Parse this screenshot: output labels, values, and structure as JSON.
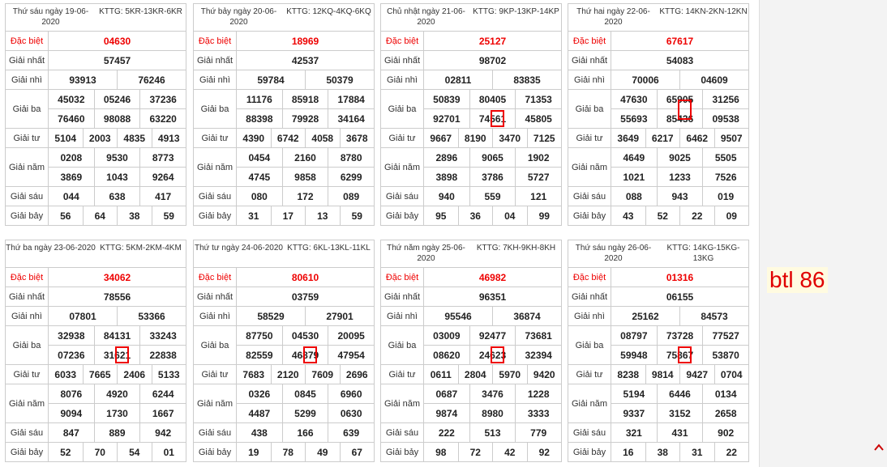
{
  "prize_labels": [
    "Đặc biệt",
    "Giải nhất",
    "Giải nhì",
    "Giải ba",
    "Giải tư",
    "Giải năm",
    "Giải sáu",
    "Giải bảy"
  ],
  "tables": [
    {
      "date": "Thứ sáu ngày 19-06-2020",
      "kttg": "KTTG: 5KR-13KR-6KR",
      "prizes": [
        [
          "04630"
        ],
        [
          "57457"
        ],
        [
          "93913",
          "76246"
        ],
        [
          "45032",
          "05246",
          "37236",
          "76460",
          "98088",
          "63220"
        ],
        [
          "5104",
          "2003",
          "4835",
          "4913"
        ],
        [
          "0208",
          "9530",
          "8773",
          "3869",
          "1043",
          "9264"
        ],
        [
          "044",
          "638",
          "417"
        ],
        [
          "56",
          "64",
          "38",
          "59"
        ]
      ]
    },
    {
      "date": "Thứ bảy ngày 20-06-2020",
      "kttg": "KTTG: 12KQ-4KQ-6KQ",
      "prizes": [
        [
          "18969"
        ],
        [
          "42537"
        ],
        [
          "59784",
          "50379"
        ],
        [
          "11176",
          "85918",
          "17884",
          "88398",
          "79928",
          "34164"
        ],
        [
          "4390",
          "6742",
          "4058",
          "3678"
        ],
        [
          "0454",
          "2160",
          "8780",
          "4745",
          "9858",
          "6299"
        ],
        [
          "080",
          "172",
          "089"
        ],
        [
          "31",
          "17",
          "13",
          "59"
        ]
      ]
    },
    {
      "date": "Chủ nhật ngày 21-06-2020",
      "kttg": "KTTG: 9KP-13KP-14KP",
      "prizes": [
        [
          "25127"
        ],
        [
          "98702"
        ],
        [
          "02811",
          "83835"
        ],
        [
          "50839",
          "80405",
          "71353",
          "92701",
          "74561",
          "45805"
        ],
        [
          "9667",
          "8190",
          "3470",
          "7125"
        ],
        [
          "2896",
          "9065",
          "1902",
          "3898",
          "3786",
          "5727"
        ],
        [
          "940",
          "559",
          "121"
        ],
        [
          "95",
          "36",
          "04",
          "99"
        ]
      ]
    },
    {
      "date": "Thứ hai ngày 22-06-2020",
      "kttg": "KTTG: 14KN-2KN-12KN",
      "prizes": [
        [
          "67617"
        ],
        [
          "54083"
        ],
        [
          "70006",
          "04609"
        ],
        [
          "47630",
          "65905",
          "31256",
          "55693",
          "85436",
          "09538"
        ],
        [
          "3649",
          "6217",
          "6462",
          "9507"
        ],
        [
          "4649",
          "9025",
          "5505",
          "1021",
          "1233",
          "7526"
        ],
        [
          "088",
          "943",
          "019"
        ],
        [
          "43",
          "52",
          "22",
          "09"
        ]
      ]
    },
    {
      "date": "Thứ ba ngày 23-06-2020",
      "kttg": "KTTG: 5KM-2KM-4KM",
      "prizes": [
        [
          "34062"
        ],
        [
          "78556"
        ],
        [
          "07801",
          "53366"
        ],
        [
          "32938",
          "84131",
          "33243",
          "07236",
          "31621",
          "22838"
        ],
        [
          "6033",
          "7665",
          "2406",
          "5133"
        ],
        [
          "8076",
          "4920",
          "6244",
          "9094",
          "1730",
          "1667"
        ],
        [
          "847",
          "889",
          "942"
        ],
        [
          "52",
          "70",
          "54",
          "01"
        ]
      ]
    },
    {
      "date": "Thứ tư ngày 24-06-2020",
      "kttg": "KTTG: 6KL-13KL-11KL",
      "prizes": [
        [
          "80610"
        ],
        [
          "03759"
        ],
        [
          "58529",
          "27901"
        ],
        [
          "87750",
          "04530",
          "20095",
          "82559",
          "46879",
          "47954"
        ],
        [
          "7683",
          "2120",
          "7609",
          "2696"
        ],
        [
          "0326",
          "0845",
          "6960",
          "4487",
          "5299",
          "0630"
        ],
        [
          "438",
          "166",
          "639"
        ],
        [
          "19",
          "78",
          "49",
          "67"
        ]
      ]
    },
    {
      "date": "Thứ năm ngày 25-06-2020",
      "kttg": "KTTG: 7KH-9KH-8KH",
      "prizes": [
        [
          "46982"
        ],
        [
          "96351"
        ],
        [
          "95546",
          "36874"
        ],
        [
          "03009",
          "92477",
          "73681",
          "08620",
          "24623",
          "32394"
        ],
        [
          "0611",
          "2804",
          "5970",
          "9420"
        ],
        [
          "0687",
          "3476",
          "1228",
          "9874",
          "8980",
          "3333"
        ],
        [
          "222",
          "513",
          "779"
        ],
        [
          "98",
          "72",
          "42",
          "92"
        ]
      ]
    },
    {
      "date": "Thứ sáu ngày 26-06-2020",
      "kttg": "KTTG: 14KG-15KG-13KG",
      "prizes": [
        [
          "01316"
        ],
        [
          "06155"
        ],
        [
          "25162",
          "84573"
        ],
        [
          "08797",
          "73728",
          "77527",
          "59948",
          "75867",
          "53870"
        ],
        [
          "8238",
          "9814",
          "9427",
          "0704"
        ],
        [
          "5194",
          "6446",
          "0134",
          "9337",
          "3152",
          "2658"
        ],
        [
          "321",
          "431",
          "902"
        ],
        [
          "16",
          "38",
          "31",
          "22"
        ]
      ]
    }
  ],
  "note": "btl 86"
}
